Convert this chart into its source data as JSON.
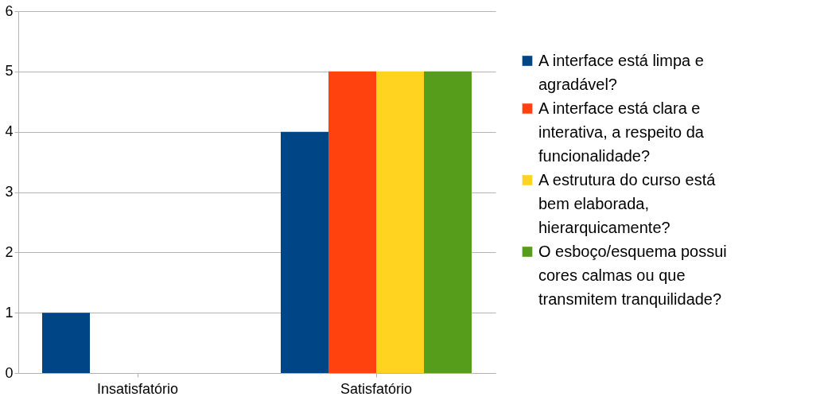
{
  "chart_data": {
    "type": "bar",
    "categories": [
      "Insatisfatório",
      "Satisfatório"
    ],
    "series": [
      {
        "name": "A interface está limpa e agradável?",
        "color": "#004586",
        "values": [
          1,
          4
        ]
      },
      {
        "name": "A interface está clara e interativa, a respeito da funcionalidade?",
        "color": "#ff420e",
        "values": [
          0,
          5
        ]
      },
      {
        "name": "A estrutura do curso está bem elaborada, hierarquicamente?",
        "color": "#ffd320",
        "values": [
          0,
          5
        ]
      },
      {
        "name": "O esboço/esquema possui cores calmas ou que transmitem tranquilidade?",
        "color": "#579d1c",
        "values": [
          0,
          5
        ]
      }
    ],
    "ylim": [
      0,
      6
    ],
    "yticks": [
      0,
      1,
      2,
      3,
      4,
      5,
      6
    ],
    "grid": "y",
    "legend": "right"
  }
}
